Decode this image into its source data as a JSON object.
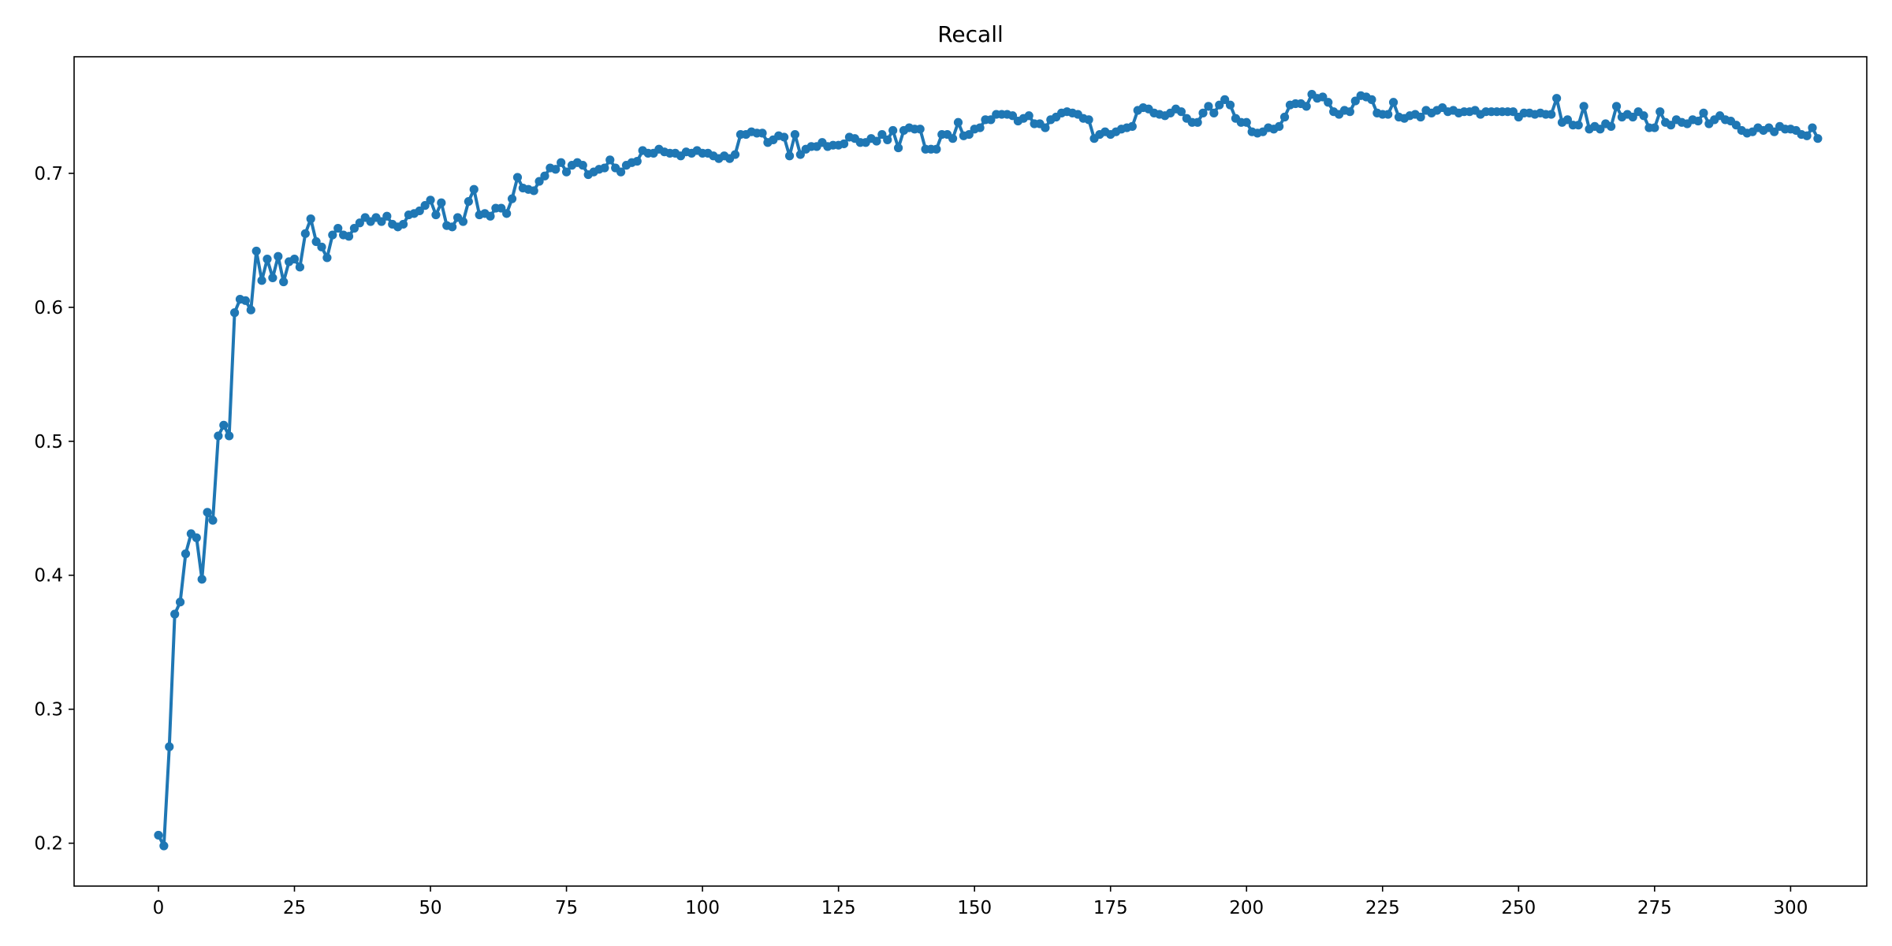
{
  "chart_data": {
    "type": "line",
    "title": "Recall",
    "xlabel": "",
    "ylabel": "",
    "xlim": [
      -15.5,
      314
    ],
    "ylim": [
      0.168,
      0.787
    ],
    "xticks": [
      0,
      25,
      50,
      75,
      100,
      125,
      150,
      175,
      200,
      225,
      250,
      275,
      300
    ],
    "yticks": [
      0.2,
      0.3,
      0.4,
      0.5,
      0.6,
      0.7
    ],
    "ytick_labels": [
      "0.2",
      "0.3",
      "0.4",
      "0.5",
      "0.6",
      "0.7"
    ],
    "grid": false,
    "legend": "none",
    "series": [
      {
        "color": "#1f77b4",
        "marker": "circle",
        "x_start": 0,
        "x_step": 1,
        "values": [
          0.206,
          0.198,
          0.272,
          0.371,
          0.38,
          0.416,
          0.431,
          0.428,
          0.397,
          0.447,
          0.441,
          0.504,
          0.512,
          0.504,
          0.596,
          0.606,
          0.605,
          0.598,
          0.642,
          0.62,
          0.636,
          0.622,
          0.638,
          0.619,
          0.634,
          0.636,
          0.63,
          0.655,
          0.666,
          0.649,
          0.645,
          0.637,
          0.654,
          0.659,
          0.654,
          0.653,
          0.659,
          0.663,
          0.667,
          0.664,
          0.667,
          0.664,
          0.668,
          0.662,
          0.66,
          0.662,
          0.669,
          0.67,
          0.672,
          0.676,
          0.68,
          0.669,
          0.678,
          0.661,
          0.66,
          0.667,
          0.664,
          0.679,
          0.688,
          0.669,
          0.67,
          0.668,
          0.674,
          0.674,
          0.67,
          0.681,
          0.697,
          0.689,
          0.688,
          0.687,
          0.694,
          0.698,
          0.704,
          0.703,
          0.708,
          0.701,
          0.706,
          0.708,
          0.706,
          0.699,
          0.701,
          0.703,
          0.704,
          0.71,
          0.704,
          0.701,
          0.706,
          0.708,
          0.709,
          0.717,
          0.715,
          0.715,
          0.718,
          0.716,
          0.715,
          0.715,
          0.713,
          0.716,
          0.715,
          0.717,
          0.715,
          0.715,
          0.713,
          0.711,
          0.713,
          0.711,
          0.714,
          0.729,
          0.729,
          0.731,
          0.73,
          0.73,
          0.723,
          0.725,
          0.728,
          0.727,
          0.713,
          0.729,
          0.714,
          0.718,
          0.72,
          0.72,
          0.723,
          0.72,
          0.721,
          0.721,
          0.722,
          0.727,
          0.726,
          0.723,
          0.723,
          0.726,
          0.724,
          0.729,
          0.725,
          0.732,
          0.719,
          0.732,
          0.734,
          0.733,
          0.733,
          0.718,
          0.718,
          0.718,
          0.729,
          0.729,
          0.726,
          0.738,
          0.728,
          0.729,
          0.733,
          0.734,
          0.74,
          0.74,
          0.744,
          0.744,
          0.744,
          0.743,
          0.739,
          0.741,
          0.743,
          0.737,
          0.737,
          0.734,
          0.74,
          0.742,
          0.745,
          0.746,
          0.745,
          0.744,
          0.741,
          0.74,
          0.726,
          0.729,
          0.731,
          0.729,
          0.731,
          0.733,
          0.734,
          0.735,
          0.747,
          0.749,
          0.748,
          0.745,
          0.744,
          0.743,
          0.745,
          0.748,
          0.746,
          0.741,
          0.738,
          0.738,
          0.745,
          0.75,
          0.745,
          0.751,
          0.755,
          0.751,
          0.741,
          0.738,
          0.738,
          0.731,
          0.73,
          0.731,
          0.734,
          0.733,
          0.735,
          0.742,
          0.751,
          0.752,
          0.752,
          0.75,
          0.759,
          0.756,
          0.757,
          0.753,
          0.746,
          0.744,
          0.747,
          0.746,
          0.754,
          0.758,
          0.757,
          0.755,
          0.745,
          0.744,
          0.744,
          0.753,
          0.742,
          0.741,
          0.743,
          0.744,
          0.742,
          0.747,
          0.745,
          0.747,
          0.749,
          0.746,
          0.747,
          0.745,
          0.746,
          0.746,
          0.747,
          0.744,
          0.746,
          0.746,
          0.746,
          0.746,
          0.746,
          0.746,
          0.742,
          0.745,
          0.745,
          0.744,
          0.745,
          0.744,
          0.744,
          0.756,
          0.738,
          0.74,
          0.736,
          0.736,
          0.75,
          0.733,
          0.735,
          0.733,
          0.737,
          0.735,
          0.75,
          0.742,
          0.744,
          0.742,
          0.746,
          0.743,
          0.734,
          0.734,
          0.746,
          0.738,
          0.736,
          0.74,
          0.738,
          0.737,
          0.74,
          0.739,
          0.745,
          0.737,
          0.74,
          0.743,
          0.74,
          0.739,
          0.736,
          0.732,
          0.73,
          0.731,
          0.734,
          0.732,
          0.734,
          0.731,
          0.735,
          0.733,
          0.733,
          0.732,
          0.729,
          0.728,
          0.734,
          0.726
        ]
      }
    ]
  }
}
